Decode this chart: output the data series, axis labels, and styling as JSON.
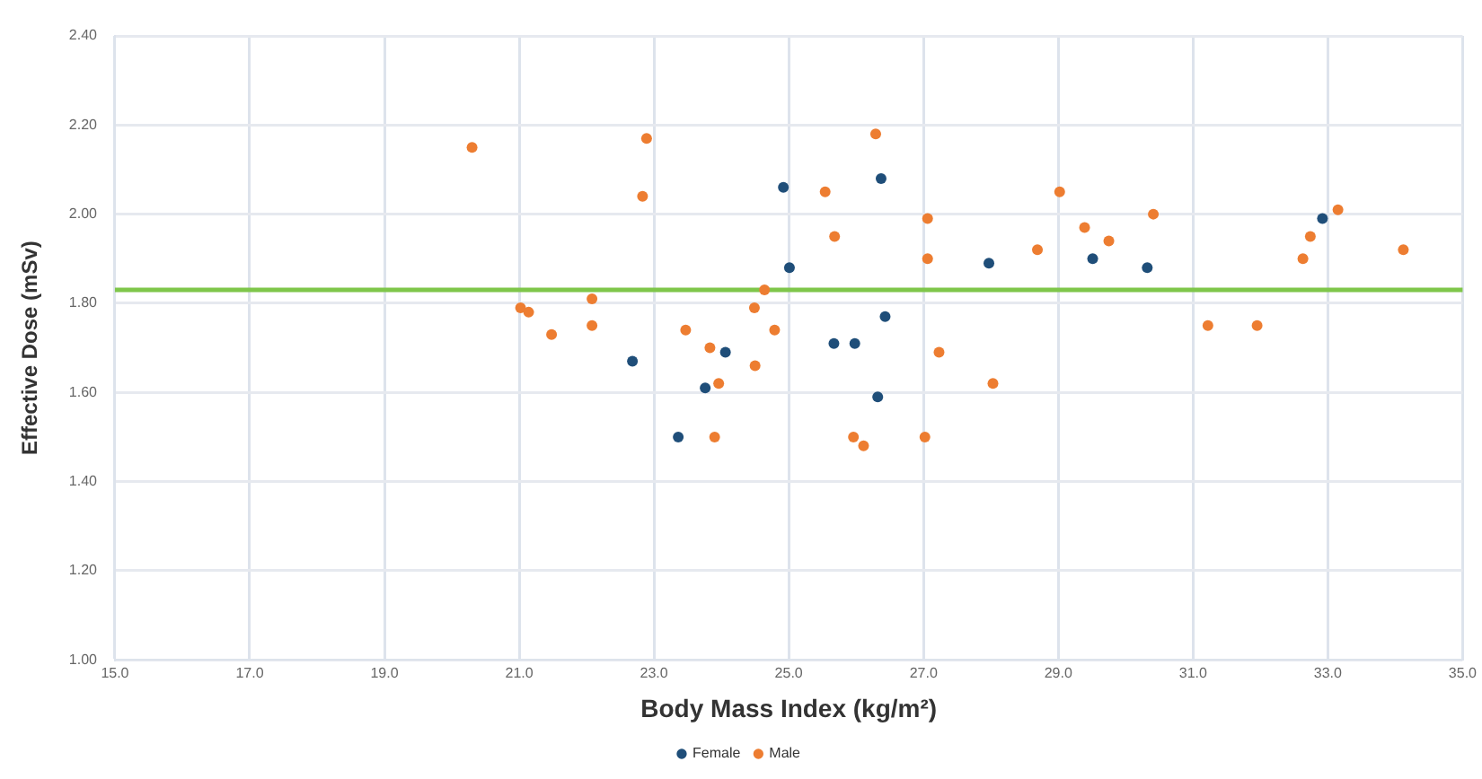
{
  "chart_data": {
    "type": "scatter",
    "xlabel": "Body Mass Index (kg/m²)",
    "ylabel": "Effective Dose (mSv)",
    "xlim": [
      15,
      35
    ],
    "ylim": [
      1,
      2.4
    ],
    "xticks": [
      {
        "value": 15,
        "label": "15.0"
      },
      {
        "value": 17,
        "label": "17.0"
      },
      {
        "value": 19,
        "label": "19.0"
      },
      {
        "value": 21,
        "label": "21.0"
      },
      {
        "value": 23,
        "label": "23.0"
      },
      {
        "value": 25,
        "label": "25.0"
      },
      {
        "value": 27,
        "label": "27.0"
      },
      {
        "value": 29,
        "label": "29.0"
      },
      {
        "value": 31,
        "label": "31.0"
      },
      {
        "value": 33,
        "label": "33.0"
      },
      {
        "value": 35,
        "label": "35.0"
      }
    ],
    "yticks": [
      {
        "value": 1,
        "label": "1.00"
      },
      {
        "value": 1.2,
        "label": "1.20"
      },
      {
        "value": 1.4,
        "label": "1.40"
      },
      {
        "value": 1.6,
        "label": "1.60"
      },
      {
        "value": 1.8,
        "label": "1.80"
      },
      {
        "value": 2,
        "label": "2.00"
      },
      {
        "value": 2.2,
        "label": "2.20"
      },
      {
        "value": 2.4,
        "label": "2.40"
      }
    ],
    "grid": true,
    "legend": "bottom",
    "marker": "circle",
    "ref_lines": [
      {
        "axis": "y",
        "value": 1.83,
        "color": "#7fc64a"
      }
    ],
    "series": [
      {
        "name": "Female",
        "color": "#1f4e79",
        "x": [
          22.68,
          24.06,
          23.76,
          23.36,
          24.92,
          26.37,
          25.01,
          27.97,
          29.51,
          26.43,
          25.67,
          25.98,
          26.32,
          30.32,
          32.92
        ],
        "values": [
          1.67,
          1.69,
          1.61,
          1.5,
          2.06,
          2.08,
          1.88,
          1.89,
          1.9,
          1.77,
          1.71,
          1.71,
          1.59,
          1.88,
          1.99
        ]
      },
      {
        "name": "Male",
        "color": "#ed7d31",
        "x": [
          20.3,
          22.89,
          22.83,
          21.02,
          21.14,
          22.08,
          22.08,
          21.48,
          23.47,
          23.83,
          23.96,
          23.9,
          26.29,
          25.54,
          29.02,
          27.06,
          25.68,
          27.06,
          28.69,
          29.39,
          29.75,
          24.64,
          24.49,
          24.79,
          24.5,
          27.23,
          28.03,
          25.96,
          26.11,
          27.02,
          30.41,
          31.22,
          31.95,
          32.63,
          32.74,
          33.15,
          34.12
        ],
        "values": [
          2.15,
          2.17,
          2.04,
          1.79,
          1.78,
          1.81,
          1.75,
          1.73,
          1.74,
          1.7,
          1.62,
          1.5,
          2.18,
          2.05,
          2.05,
          1.99,
          1.95,
          1.9,
          1.92,
          1.97,
          1.94,
          1.83,
          1.79,
          1.74,
          1.66,
          1.69,
          1.62,
          1.5,
          1.48,
          1.5,
          2.0,
          1.75,
          1.75,
          1.9,
          1.95,
          2.01,
          1.92
        ]
      }
    ]
  }
}
